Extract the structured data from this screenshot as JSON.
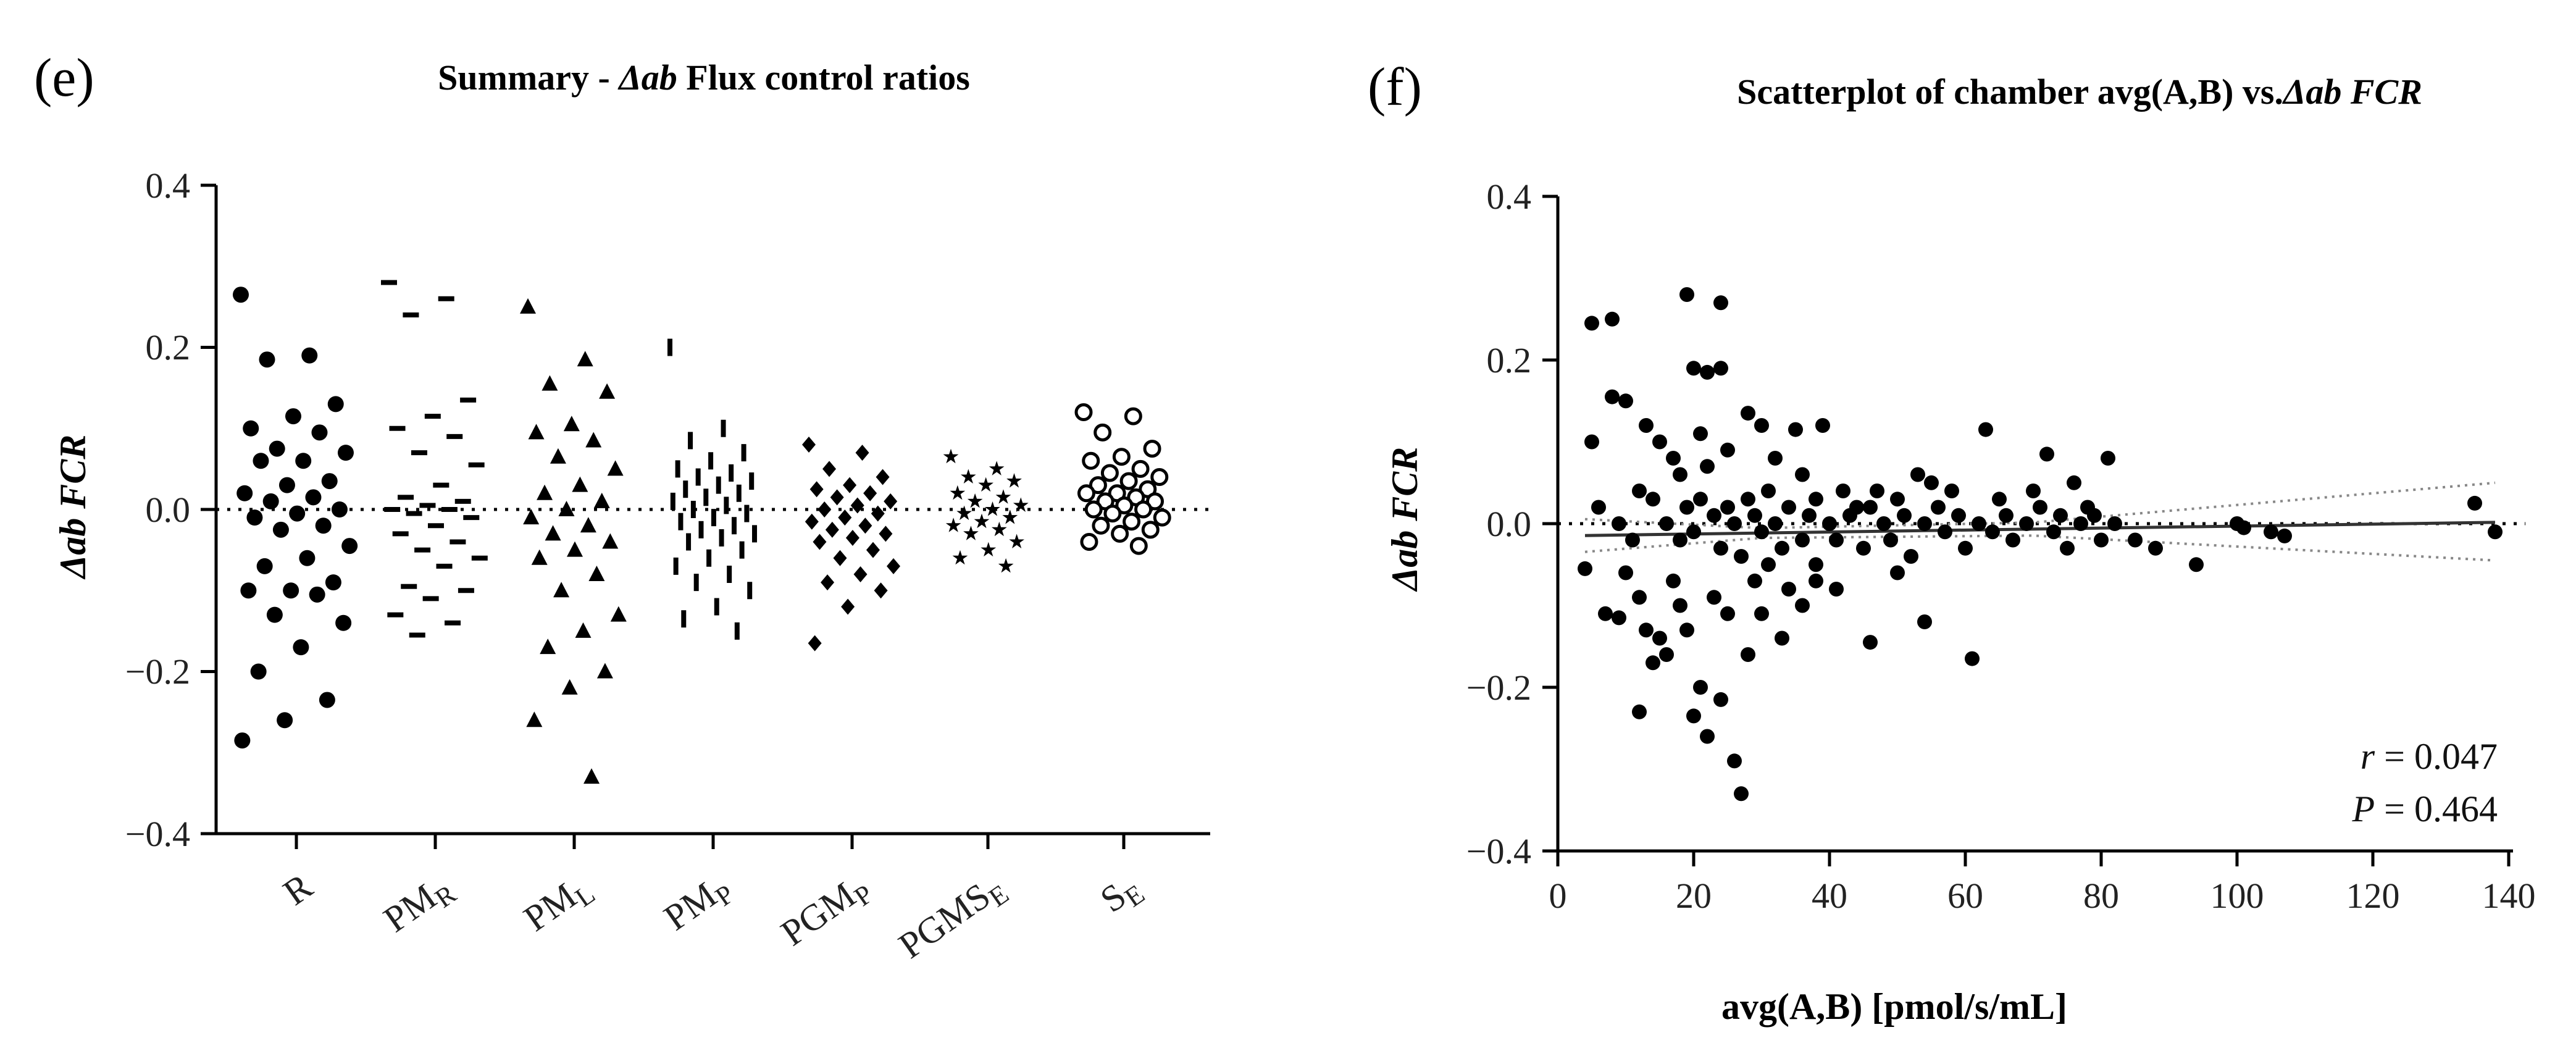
{
  "panel_e": {
    "letter": "(e)",
    "title_pre": "Summary - ",
    "title_em": "Δab",
    "title_post": " Flux control ratios",
    "ylabel": "Δab FCR",
    "yticks": [
      "0.4",
      "0.2",
      "0.0",
      "−0.2",
      "−0.4"
    ],
    "categories": [
      {
        "base": "R",
        "sub": ""
      },
      {
        "base": "PM",
        "sub": "R"
      },
      {
        "base": "PM",
        "sub": "L"
      },
      {
        "base": "PM",
        "sub": "P"
      },
      {
        "base": "PGM",
        "sub": "P"
      },
      {
        "base": "PGMS",
        "sub": "E"
      },
      {
        "base": "S",
        "sub": "E"
      }
    ]
  },
  "panel_f": {
    "letter": "(f)",
    "title_pre": "Scatterplot of chamber avg(A,B) vs.",
    "title_em": "Δab FCR",
    "ylabel": "Δab FCR",
    "xlabel": "avg(A,B) [pmol/s/mL]",
    "yticks": [
      "0.4",
      "0.2",
      "0.0",
      "−0.2",
      "−0.4"
    ],
    "xticks": [
      "0",
      "20",
      "40",
      "60",
      "80",
      "100",
      "120",
      "140"
    ],
    "r_label": "r",
    "r_value": " = 0.047",
    "p_label": "P",
    "p_value": " = 0.464"
  },
  "chart_data": [
    {
      "type": "scatter",
      "subtype": "dot-strip",
      "title": "Summary - Δab Flux control ratios",
      "xlabel": "",
      "ylabel": "Δab FCR",
      "ylim": [
        -0.4,
        0.4
      ],
      "reference_line": 0.0,
      "series": [
        {
          "name": "R",
          "marker": "circle",
          "values": [
            0.265,
            0.19,
            0.185,
            0.13,
            0.115,
            0.1,
            0.095,
            0.075,
            0.07,
            0.06,
            0.06,
            0.035,
            0.03,
            0.02,
            0.015,
            0.01,
            0.0,
            -0.005,
            -0.01,
            -0.02,
            -0.025,
            -0.045,
            -0.06,
            -0.07,
            -0.09,
            -0.1,
            -0.1,
            -0.105,
            -0.13,
            -0.14,
            -0.17,
            -0.2,
            -0.235,
            -0.26,
            -0.285
          ]
        },
        {
          "name": "PM_R",
          "marker": "dash",
          "values": [
            0.28,
            0.26,
            0.24,
            0.135,
            0.115,
            0.1,
            0.09,
            0.07,
            0.055,
            0.03,
            0.015,
            0.01,
            0.005,
            0.0,
            0.0,
            -0.005,
            -0.01,
            -0.02,
            -0.03,
            -0.04,
            -0.05,
            -0.06,
            -0.07,
            -0.095,
            -0.1,
            -0.11,
            -0.13,
            -0.14,
            -0.155
          ]
        },
        {
          "name": "PM_L",
          "marker": "triangle",
          "values": [
            0.25,
            0.185,
            0.155,
            0.145,
            0.105,
            0.095,
            0.085,
            0.065,
            0.05,
            0.03,
            0.02,
            0.01,
            0.0,
            -0.01,
            -0.02,
            -0.03,
            -0.04,
            -0.05,
            -0.06,
            -0.08,
            -0.1,
            -0.13,
            -0.15,
            -0.17,
            -0.2,
            -0.22,
            -0.26,
            -0.33
          ]
        },
        {
          "name": "PM_P",
          "marker": "vbar",
          "values": [
            0.2,
            0.1,
            0.085,
            0.07,
            0.06,
            0.05,
            0.045,
            0.04,
            0.035,
            0.03,
            0.025,
            0.02,
            0.015,
            0.01,
            0.005,
            0.0,
            -0.005,
            -0.01,
            -0.015,
            -0.02,
            -0.025,
            -0.03,
            -0.035,
            -0.04,
            -0.05,
            -0.06,
            -0.07,
            -0.08,
            -0.09,
            -0.1,
            -0.12,
            -0.135,
            -0.15
          ]
        },
        {
          "name": "PGM_P",
          "marker": "diamond",
          "values": [
            0.08,
            0.07,
            0.05,
            0.04,
            0.03,
            0.025,
            0.02,
            0.015,
            0.01,
            0.005,
            0.0,
            -0.005,
            -0.01,
            -0.015,
            -0.02,
            -0.025,
            -0.03,
            -0.035,
            -0.04,
            -0.05,
            -0.06,
            -0.07,
            -0.08,
            -0.09,
            -0.1,
            -0.12,
            -0.165
          ]
        },
        {
          "name": "PGMS_E",
          "marker": "star",
          "values": [
            0.065,
            0.05,
            0.04,
            0.035,
            0.03,
            0.02,
            0.015,
            0.01,
            0.005,
            0.0,
            -0.005,
            -0.01,
            -0.015,
            -0.02,
            -0.025,
            -0.03,
            -0.04,
            -0.05,
            -0.06,
            -0.07
          ]
        },
        {
          "name": "S_E",
          "marker": "open-circle",
          "values": [
            0.12,
            0.115,
            0.095,
            0.075,
            0.065,
            0.06,
            0.05,
            0.045,
            0.04,
            0.035,
            0.03,
            0.025,
            0.02,
            0.02,
            0.015,
            0.01,
            0.01,
            0.005,
            0.0,
            0.0,
            -0.005,
            -0.01,
            -0.015,
            -0.02,
            -0.025,
            -0.03,
            -0.04,
            -0.045
          ]
        }
      ]
    },
    {
      "type": "scatter",
      "title": "Scatterplot of chamber avg(A,B) vs.Δab FCR",
      "xlabel": "avg(A,B) [pmol/s/mL]",
      "ylabel": "Δab FCR",
      "xlim": [
        0,
        140
      ],
      "ylim": [
        -0.4,
        0.4
      ],
      "reference_line": 0.0,
      "regression": {
        "slope": 0.00012,
        "intercept": -0.015,
        "x_range": [
          4,
          138
        ],
        "ci_upper_end": 0.05,
        "ci_lower_end": -0.045
      },
      "annotations": [
        "r = 0.047",
        "P = 0.464"
      ],
      "points": [
        [
          5,
          0.245
        ],
        [
          8,
          0.25
        ],
        [
          19,
          0.28
        ],
        [
          24,
          0.27
        ],
        [
          20,
          0.19
        ],
        [
          24,
          0.19
        ],
        [
          22,
          0.185
        ],
        [
          5,
          0.1
        ],
        [
          8,
          0.155
        ],
        [
          10,
          0.15
        ],
        [
          13,
          0.12
        ],
        [
          15,
          0.1
        ],
        [
          17,
          0.08
        ],
        [
          18,
          0.06
        ],
        [
          21,
          0.11
        ],
        [
          22,
          0.07
        ],
        [
          25,
          0.09
        ],
        [
          28,
          0.135
        ],
        [
          30,
          0.12
        ],
        [
          32,
          0.08
        ],
        [
          35,
          0.115
        ],
        [
          39,
          0.12
        ],
        [
          36,
          0.06
        ],
        [
          38,
          0.03
        ],
        [
          42,
          0.04
        ],
        [
          44,
          0.02
        ],
        [
          47,
          0.04
        ],
        [
          50,
          0.03
        ],
        [
          53,
          0.06
        ],
        [
          55,
          0.05
        ],
        [
          58,
          0.04
        ],
        [
          63,
          0.115
        ],
        [
          65,
          0.03
        ],
        [
          70,
          0.04
        ],
        [
          72,
          0.085
        ],
        [
          76,
          0.05
        ],
        [
          78,
          0.02
        ],
        [
          81,
          0.08
        ],
        [
          6,
          0.02
        ],
        [
          9,
          0.0
        ],
        [
          11,
          -0.02
        ],
        [
          12,
          0.04
        ],
        [
          14,
          0.03
        ],
        [
          16,
          0.0
        ],
        [
          18,
          -0.02
        ],
        [
          19,
          0.02
        ],
        [
          20,
          -0.01
        ],
        [
          21,
          0.03
        ],
        [
          23,
          0.01
        ],
        [
          24,
          -0.03
        ],
        [
          25,
          0.02
        ],
        [
          26,
          0.0
        ],
        [
          27,
          -0.04
        ],
        [
          28,
          0.03
        ],
        [
          29,
          0.01
        ],
        [
          30,
          -0.01
        ],
        [
          31,
          0.04
        ],
        [
          32,
          0.0
        ],
        [
          33,
          -0.03
        ],
        [
          34,
          0.02
        ],
        [
          36,
          -0.02
        ],
        [
          37,
          0.01
        ],
        [
          38,
          -0.05
        ],
        [
          40,
          0.0
        ],
        [
          41,
          -0.02
        ],
        [
          43,
          0.01
        ],
        [
          45,
          -0.03
        ],
        [
          46,
          0.02
        ],
        [
          48,
          0.0
        ],
        [
          49,
          -0.02
        ],
        [
          51,
          0.01
        ],
        [
          52,
          -0.04
        ],
        [
          54,
          0.0
        ],
        [
          56,
          0.02
        ],
        [
          57,
          -0.01
        ],
        [
          59,
          0.01
        ],
        [
          60,
          -0.03
        ],
        [
          62,
          0.0
        ],
        [
          64,
          -0.01
        ],
        [
          66,
          0.01
        ],
        [
          67,
          -0.02
        ],
        [
          69,
          0.0
        ],
        [
          71,
          0.02
        ],
        [
          73,
          -0.01
        ],
        [
          74,
          0.01
        ],
        [
          75,
          -0.03
        ],
        [
          77,
          0.0
        ],
        [
          79,
          0.01
        ],
        [
          80,
          -0.02
        ],
        [
          82,
          0.0
        ],
        [
          85,
          -0.02
        ],
        [
          88,
          -0.03
        ],
        [
          94,
          -0.05
        ],
        [
          100,
          0.0
        ],
        [
          101,
          -0.005
        ],
        [
          105,
          -0.01
        ],
        [
          107,
          -0.015
        ],
        [
          135,
          0.025
        ],
        [
          138,
          -0.01
        ],
        [
          4,
          -0.055
        ],
        [
          7,
          -0.11
        ],
        [
          9,
          -0.115
        ],
        [
          10,
          -0.06
        ],
        [
          12,
          -0.09
        ],
        [
          13,
          -0.13
        ],
        [
          14,
          -0.17
        ],
        [
          15,
          -0.14
        ],
        [
          16,
          -0.16
        ],
        [
          17,
          -0.07
        ],
        [
          18,
          -0.1
        ],
        [
          19,
          -0.13
        ],
        [
          20,
          -0.235
        ],
        [
          21,
          -0.2
        ],
        [
          22,
          -0.26
        ],
        [
          23,
          -0.09
        ],
        [
          24,
          -0.215
        ],
        [
          25,
          -0.11
        ],
        [
          26,
          -0.29
        ],
        [
          27,
          -0.33
        ],
        [
          28,
          -0.16
        ],
        [
          29,
          -0.07
        ],
        [
          30,
          -0.11
        ],
        [
          31,
          -0.05
        ],
        [
          33,
          -0.14
        ],
        [
          34,
          -0.08
        ],
        [
          36,
          -0.1
        ],
        [
          38,
          -0.07
        ],
        [
          41,
          -0.08
        ],
        [
          46,
          -0.145
        ],
        [
          50,
          -0.06
        ],
        [
          54,
          -0.12
        ],
        [
          61,
          -0.165
        ],
        [
          12,
          -0.23
        ]
      ]
    }
  ]
}
